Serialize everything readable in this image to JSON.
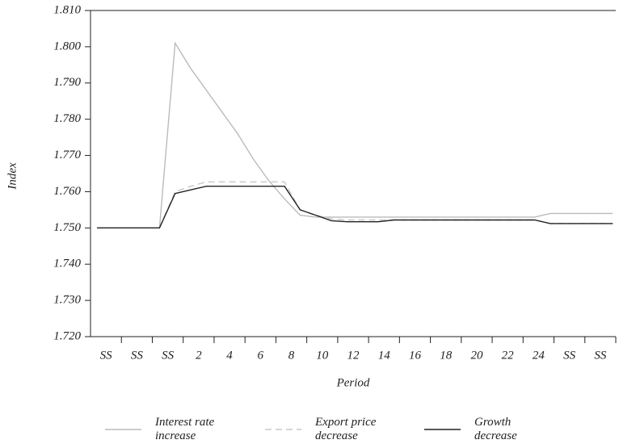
{
  "chart_data": {
    "type": "line",
    "y_label": "Index",
    "x_label": "Period",
    "categories": [
      "SS",
      null,
      "SS",
      null,
      "SS",
      null,
      "2",
      null,
      "4",
      null,
      "6",
      null,
      "8",
      null,
      "10",
      null,
      "12",
      null,
      "14",
      null,
      "16",
      null,
      "18",
      null,
      "20",
      null,
      "22",
      null,
      "24",
      null,
      "SS",
      null,
      "SS",
      null
    ],
    "ylim": [
      1.72,
      1.81
    ],
    "yticks": [
      {
        "value": 1.72,
        "label": "1.720"
      },
      {
        "value": 1.73,
        "label": "1.730"
      },
      {
        "value": 1.74,
        "label": "1.740"
      },
      {
        "value": 1.75,
        "label": "1.750"
      },
      {
        "value": 1.76,
        "label": "1.760"
      },
      {
        "value": 1.77,
        "label": "1.770"
      },
      {
        "value": 1.78,
        "label": "1.780"
      },
      {
        "value": 1.79,
        "label": "1.790"
      },
      {
        "value": 1.8,
        "label": "1.800"
      },
      {
        "value": 1.81,
        "label": "1.810"
      }
    ],
    "series": [
      {
        "name": "Interest rate increase",
        "color": "#bbbbbb",
        "dash": false,
        "values": [
          1.75,
          1.75,
          1.75,
          1.75,
          1.75,
          1.801,
          1.794,
          1.788,
          1.782,
          1.776,
          1.769,
          1.763,
          1.758,
          1.7535,
          1.753,
          1.753,
          1.753,
          1.753,
          1.753,
          1.753,
          1.753,
          1.753,
          1.753,
          1.753,
          1.753,
          1.753,
          1.753,
          1.753,
          1.753,
          1.754,
          1.754,
          1.754,
          1.754,
          1.754
        ]
      },
      {
        "name": "Export price decrease",
        "color": "#c8c8c8",
        "dash": true,
        "values": [
          1.75,
          1.75,
          1.75,
          1.75,
          1.75,
          1.76,
          1.7615,
          1.7627,
          1.7627,
          1.7627,
          1.7627,
          1.7627,
          1.7627,
          1.755,
          1.7535,
          1.7525,
          1.7522,
          1.7522,
          1.7522,
          1.7522,
          1.7522,
          1.7522,
          1.7522,
          1.7522,
          1.7522,
          1.7522,
          1.7522,
          1.7522,
          1.7522,
          1.7512,
          1.7512,
          1.7512,
          1.7512,
          1.7512
        ]
      },
      {
        "name": "Growth decrease",
        "color": "#222222",
        "dash": false,
        "values": [
          1.75,
          1.75,
          1.75,
          1.75,
          1.75,
          1.7595,
          1.7605,
          1.7615,
          1.7615,
          1.7615,
          1.7615,
          1.7615,
          1.7615,
          1.755,
          1.7535,
          1.752,
          1.7517,
          1.7517,
          1.7517,
          1.7522,
          1.7522,
          1.7522,
          1.7522,
          1.7522,
          1.7522,
          1.7522,
          1.7522,
          1.7522,
          1.7522,
          1.7512,
          1.7512,
          1.7512,
          1.7512,
          1.7512
        ]
      }
    ]
  }
}
